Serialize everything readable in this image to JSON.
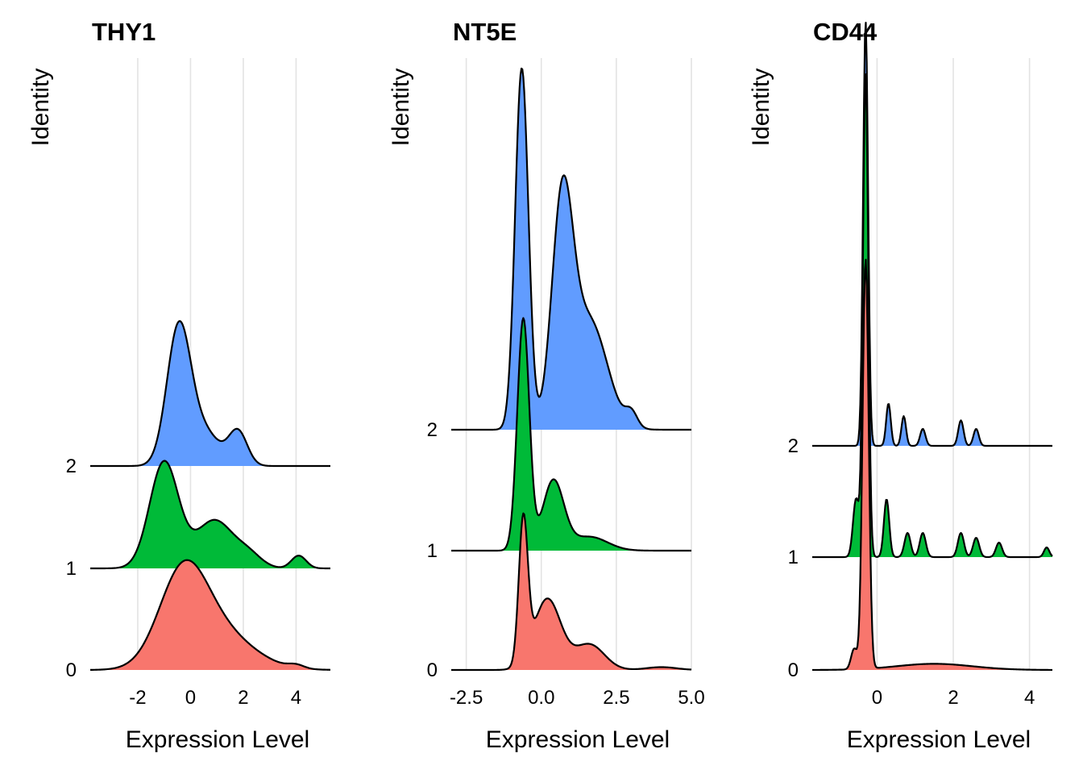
{
  "figure": {
    "y_axis_label": "Identity",
    "x_axis_label": "Expression Level"
  },
  "colors": {
    "0": "#F8766D",
    "1": "#00BA38",
    "2": "#619CFF",
    "outline": "#000000",
    "grid": "#e3e3e3"
  },
  "chart_data": [
    {
      "type": "ridgeline",
      "title": "THY1",
      "xlabel": "Expression Level",
      "ylabel": "Identity",
      "xlim": [
        -3.8,
        5.3
      ],
      "xticks": [
        -2,
        0,
        2,
        4
      ],
      "xtick_labels": [
        "-2",
        "0",
        "2",
        "4"
      ],
      "grid": true,
      "series": [
        {
          "name": "0",
          "x_range": [
            -3.8,
            5.3
          ],
          "peak_height": 0.94,
          "components": [
            {
              "mu": -0.3,
              "sd": 0.9,
              "w": 1.0
            },
            {
              "mu": 1.0,
              "sd": 1.3,
              "w": 0.45
            },
            {
              "mu": 4.0,
              "sd": 0.3,
              "w": 0.04
            }
          ]
        },
        {
          "name": "1",
          "x_range": [
            -3.8,
            5.3
          ],
          "peak_height": 0.92,
          "components": [
            {
              "mu": -1.0,
              "sd": 0.55,
              "w": 1.0
            },
            {
              "mu": 0.9,
              "sd": 0.7,
              "w": 0.45
            },
            {
              "mu": 2.2,
              "sd": 0.5,
              "w": 0.12
            },
            {
              "mu": 4.1,
              "sd": 0.28,
              "w": 0.12
            }
          ]
        },
        {
          "name": "2",
          "x_range": [
            -3.8,
            5.3
          ],
          "peak_height": 1.24,
          "components": [
            {
              "mu": -0.45,
              "sd": 0.45,
              "w": 1.0
            },
            {
              "mu": 0.5,
              "sd": 0.6,
              "w": 0.25
            },
            {
              "mu": 1.8,
              "sd": 0.35,
              "w": 0.25
            }
          ]
        }
      ]
    },
    {
      "type": "ridgeline",
      "title": "NT5E",
      "xlabel": "Expression Level",
      "ylabel": "Identity",
      "xlim": [
        -3.0,
        5.0
      ],
      "xticks": [
        -2.5,
        0.0,
        2.5,
        5.0
      ],
      "xtick_labels": [
        "-2.5",
        "0.0",
        "2.5",
        "5.0"
      ],
      "grid": true,
      "series": [
        {
          "name": "0",
          "x_range": [
            -3.0,
            5.0
          ],
          "peak_height": 1.34,
          "components": [
            {
              "mu": -0.6,
              "sd": 0.15,
              "w": 1.0
            },
            {
              "mu": 0.2,
              "sd": 0.45,
              "w": 0.5
            },
            {
              "mu": 1.6,
              "sd": 0.5,
              "w": 0.18
            },
            {
              "mu": 4.0,
              "sd": 0.5,
              "w": 0.02
            }
          ]
        },
        {
          "name": "1",
          "x_range": [
            -3.0,
            5.0
          ],
          "peak_height": 1.99,
          "components": [
            {
              "mu": -0.6,
              "sd": 0.2,
              "w": 1.0
            },
            {
              "mu": 0.4,
              "sd": 0.35,
              "w": 0.3
            },
            {
              "mu": 1.6,
              "sd": 0.6,
              "w": 0.06
            }
          ]
        },
        {
          "name": "2",
          "x_range": [
            -3.0,
            5.0
          ],
          "peak_height": 3.09,
          "components": [
            {
              "mu": -0.65,
              "sd": 0.22,
              "w": 1.0
            },
            {
              "mu": 0.7,
              "sd": 0.35,
              "w": 0.6
            },
            {
              "mu": 1.6,
              "sd": 0.6,
              "w": 0.3
            },
            {
              "mu": 3.0,
              "sd": 0.2,
              "w": 0.04
            }
          ]
        }
      ]
    },
    {
      "type": "ridgeline",
      "title": "CD44",
      "xlabel": "Expression Level",
      "ylabel": "Identity",
      "xlim": [
        -1.7,
        4.6
      ],
      "xticks": [
        0,
        2,
        4
      ],
      "xtick_labels": [
        "0",
        "2",
        "4"
      ],
      "grid": true,
      "series": [
        {
          "name": "0",
          "x_range": [
            -1.7,
            4.6
          ],
          "peak_height": 3.51,
          "components": [
            {
              "mu": -0.3,
              "sd": 0.08,
              "w": 1.0
            },
            {
              "mu": -0.6,
              "sd": 0.08,
              "w": 0.05
            },
            {
              "mu": 1.5,
              "sd": 1.0,
              "w": 0.015
            }
          ]
        },
        {
          "name": "1",
          "x_range": [
            -1.7,
            4.6
          ],
          "peak_height": 4.13,
          "components": [
            {
              "mu": -0.3,
              "sd": 0.07,
              "w": 1.0
            },
            {
              "mu": -0.55,
              "sd": 0.08,
              "w": 0.12
            },
            {
              "mu": 0.25,
              "sd": 0.07,
              "w": 0.12
            },
            {
              "mu": 0.8,
              "sd": 0.08,
              "w": 0.05
            },
            {
              "mu": 1.2,
              "sd": 0.08,
              "w": 0.05
            },
            {
              "mu": 2.2,
              "sd": 0.08,
              "w": 0.05
            },
            {
              "mu": 2.6,
              "sd": 0.08,
              "w": 0.04
            },
            {
              "mu": 3.2,
              "sd": 0.08,
              "w": 0.03
            },
            {
              "mu": 4.45,
              "sd": 0.07,
              "w": 0.02
            }
          ]
        },
        {
          "name": "2",
          "x_range": [
            -1.7,
            4.6
          ],
          "peak_height": 3.62,
          "components": [
            {
              "mu": -0.3,
              "sd": 0.065,
              "w": 1.0
            },
            {
              "mu": 0.3,
              "sd": 0.06,
              "w": 0.1
            },
            {
              "mu": 0.7,
              "sd": 0.06,
              "w": 0.07
            },
            {
              "mu": 1.2,
              "sd": 0.07,
              "w": 0.04
            },
            {
              "mu": 2.2,
              "sd": 0.07,
              "w": 0.06
            },
            {
              "mu": 2.6,
              "sd": 0.07,
              "w": 0.04
            }
          ]
        }
      ]
    }
  ]
}
